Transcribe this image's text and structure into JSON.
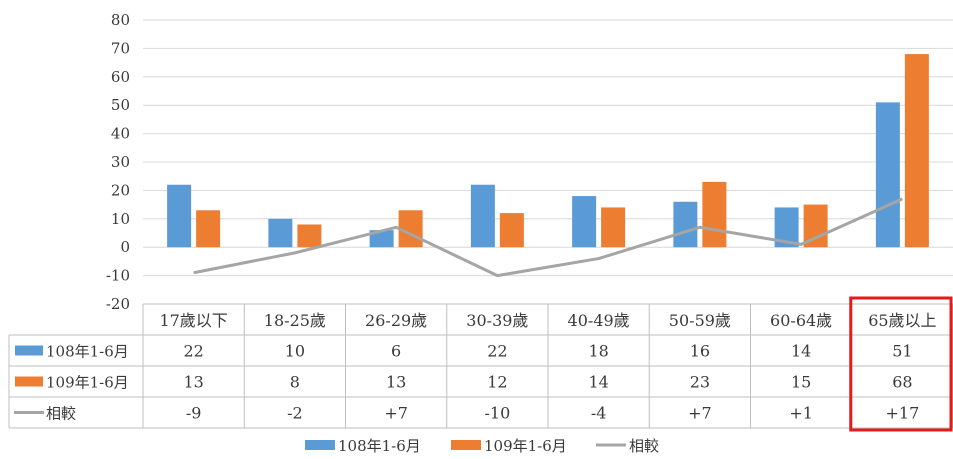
{
  "chart_data": {
    "type": "bar",
    "categories": [
      "17歲以下",
      "18-25歲",
      "26-29歲",
      "30-39歲",
      "40-49歲",
      "50-59歲",
      "60-64歲",
      "65歲以上"
    ],
    "series": [
      {
        "name": "108年1-6月",
        "kind": "bar",
        "color": "#5B9BD5",
        "values": [
          22,
          10,
          6,
          22,
          18,
          16,
          14,
          51
        ]
      },
      {
        "name": "109年1-6月",
        "kind": "bar",
        "color": "#ED7D31",
        "values": [
          13,
          8,
          13,
          12,
          14,
          23,
          15,
          68
        ]
      },
      {
        "name": "相較",
        "kind": "line",
        "color": "#A5A5A5",
        "values": [
          -9,
          -2,
          7,
          -10,
          -4,
          7,
          1,
          17
        ]
      }
    ],
    "table_rows": [
      [
        "22",
        "10",
        "6",
        "22",
        "18",
        "16",
        "14",
        "51"
      ],
      [
        "13",
        "8",
        "13",
        "12",
        "14",
        "23",
        "15",
        "68"
      ],
      [
        "-9",
        "-2",
        "+7",
        "-10",
        "-4",
        "+7",
        "+1",
        "+17"
      ]
    ],
    "ylim": [
      -20,
      80
    ],
    "yticks": [
      80,
      70,
      60,
      50,
      40,
      30,
      20,
      10,
      0,
      -10,
      -20
    ],
    "grid": true,
    "legend": "bottom",
    "highlight_category": "65歲以上",
    "highlight_color": "#E31B1B"
  }
}
